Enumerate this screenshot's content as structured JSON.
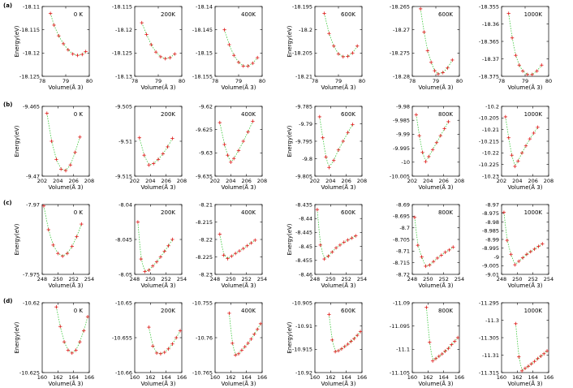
{
  "chart_data": {
    "type": "scatter",
    "layout": "4x6 grid",
    "ylabel": "Energy(eV)",
    "xlabel": "Volume(Å 3)",
    "colors": {
      "points": "#e01b1b",
      "fit": "#3cc83c",
      "frame": "#000000"
    },
    "rows": [
      {
        "label": "(a)",
        "xlim": [
          78,
          80
        ],
        "xticks": [
          78,
          79,
          80
        ],
        "panels": [
          {
            "temp": "0 K",
            "ylim": [
              -18.125,
              -18.11
            ],
            "yticks": [
              -18.11,
              -18.115,
              -18.12,
              -18.125
            ],
            "x": [
              78.35,
              78.5,
              78.7,
              78.9,
              79.1,
              79.3,
              79.5,
              79.7,
              79.85
            ],
            "y": [
              -18.1115,
              -18.114,
              -18.1163,
              -18.118,
              -18.1193,
              -18.1202,
              -18.1205,
              -18.1203,
              -18.1197
            ]
          },
          {
            "temp": "200K",
            "ylim": [
              -18.13,
              -18.115
            ],
            "yticks": [
              -18.115,
              -18.12,
              -18.125,
              -18.13
            ],
            "x": [
              78.3,
              78.5,
              78.7,
              78.9,
              79.1,
              79.3,
              79.5,
              79.7
            ],
            "y": [
              -18.1185,
              -18.121,
              -18.1232,
              -18.1248,
              -18.1258,
              -18.1262,
              -18.126,
              -18.1252
            ]
          },
          {
            "temp": "400K",
            "ylim": [
              -18.155,
              -18.14
            ],
            "yticks": [
              -18.14,
              -18.145,
              -18.15,
              -18.155
            ],
            "x": [
              78.4,
              78.6,
              78.8,
              79.0,
              79.2,
              79.4,
              79.6,
              79.8
            ],
            "y": [
              -18.145,
              -18.1482,
              -18.1505,
              -18.152,
              -18.1528,
              -18.1528,
              -18.1522,
              -18.151
            ]
          },
          {
            "temp": "600K",
            "ylim": [
              -18.21,
              -18.195
            ],
            "yticks": [
              -18.195,
              -18.2,
              -18.205,
              -18.21
            ],
            "x": [
              78.4,
              78.6,
              78.8,
              79.0,
              79.2,
              79.4,
              79.6,
              79.8
            ],
            "y": [
              -18.1965,
              -18.2008,
              -18.2035,
              -18.2052,
              -18.2058,
              -18.2057,
              -18.205,
              -18.2035
            ]
          },
          {
            "temp": "600K",
            "ylim": [
              -18.28,
              -18.265
            ],
            "yticks": [
              -18.265,
              -18.27,
              -18.275,
              -18.28
            ],
            "x": [
              78.35,
              78.5,
              78.65,
              78.8,
              78.95,
              79.1,
              79.3,
              79.5,
              79.7
            ],
            "y": [
              -18.2655,
              -18.2705,
              -18.2745,
              -18.277,
              -18.2788,
              -18.2795,
              -18.2792,
              -18.2782,
              -18.2765
            ]
          },
          {
            "temp": "1000K",
            "ylim": [
              -18.375,
              -18.355
            ],
            "yticks": [
              -18.355,
              -18.36,
              -18.365,
              -18.37,
              -18.375
            ],
            "x": [
              78.3,
              78.45,
              78.6,
              78.75,
              78.9,
              79.1,
              79.3,
              79.5,
              79.7
            ],
            "y": [
              -18.357,
              -18.364,
              -18.369,
              -18.3718,
              -18.3735,
              -18.3745,
              -18.3745,
              -18.3735,
              -18.3718
            ]
          }
        ]
      },
      {
        "label": "(b)",
        "xlim": [
          202,
          208
        ],
        "xticks": [
          202,
          204,
          206,
          208
        ],
        "panels": [
          {
            "temp": "0 K",
            "ylim": [
              -9.47,
              -9.465
            ],
            "yticks": [
              -9.465,
              -9.47
            ],
            "x": [
              202.6,
              203.2,
              203.8,
              204.4,
              205.0,
              205.6,
              206.2,
              206.8
            ],
            "y": [
              -9.4655,
              -9.4675,
              -9.4688,
              -9.4695,
              -9.4696,
              -9.4692,
              -9.4683,
              -9.4672
            ]
          },
          {
            "temp": "200K",
            "ylim": [
              -9.515,
              -9.505
            ],
            "yticks": [
              -9.505,
              -9.51,
              -9.515
            ],
            "x": [
              202.6,
              203.2,
              203.8,
              204.4,
              205.0,
              205.6,
              206.2,
              206.8
            ],
            "y": [
              -9.5095,
              -9.512,
              -9.5134,
              -9.5132,
              -9.5126,
              -9.5118,
              -9.5108,
              -9.5096
            ]
          },
          {
            "temp": "400K",
            "ylim": [
              -9.635,
              -9.62
            ],
            "yticks": [
              -9.62,
              -9.625,
              -9.63,
              -9.635
            ],
            "x": [
              202.6,
              203.2,
              203.6,
              204.0,
              204.4,
              205.0,
              205.6,
              206.2,
              206.8
            ],
            "y": [
              -9.6235,
              -9.6282,
              -9.6305,
              -9.632,
              -9.6312,
              -9.6295,
              -9.6275,
              -9.6255,
              -9.6232
            ]
          },
          {
            "temp": "600K",
            "ylim": [
              -9.805,
              -9.785
            ],
            "yticks": [
              -9.785,
              -9.79,
              -9.795,
              -9.8,
              -9.805
            ],
            "x": [
              202.6,
              203.0,
              203.4,
              203.8,
              204.4,
              205.0,
              205.6,
              206.2,
              206.8
            ],
            "y": [
              -9.788,
              -9.794,
              -9.7995,
              -9.8025,
              -9.8005,
              -9.7975,
              -9.795,
              -9.7925,
              -9.7902
            ]
          },
          {
            "temp": "800K",
            "ylim": [
              -10.005,
              -9.98
            ],
            "yticks": [
              -9.98,
              -9.985,
              -9.99,
              -9.995,
              -10,
              -10.005
            ],
            "x": [
              202.5,
              202.9,
              203.3,
              203.7,
              204.1,
              204.6,
              205.1,
              205.6,
              206.1,
              206.6
            ],
            "y": [
              -9.983,
              -9.9905,
              -9.9965,
              -9.9998,
              -9.998,
              -9.9955,
              -9.993,
              -9.9905,
              -9.988,
              -9.9855
            ]
          },
          {
            "temp": "1000K",
            "ylim": [
              -10.23,
              -10.2
            ],
            "yticks": [
              -10.2,
              -10.205,
              -10.21,
              -10.215,
              -10.22,
              -10.225,
              -10.23
            ],
            "x": [
              202.5,
              202.9,
              203.3,
              203.7,
              204.1,
              204.6,
              205.1,
              205.6,
              206.1,
              206.6
            ],
            "y": [
              -10.2045,
              -10.2135,
              -10.221,
              -10.2258,
              -10.2235,
              -10.22,
              -10.217,
              -10.214,
              -10.2115,
              -10.209
            ]
          }
        ]
      },
      {
        "label": "(c)",
        "xlim": [
          248,
          254
        ],
        "xticks": [
          248,
          250,
          252,
          254
        ],
        "panels": [
          {
            "temp": "0 K",
            "ylim": [
              -7.975,
              -7.97
            ],
            "yticks": [
              -7.97,
              -7.975
            ],
            "x": [
              248.2,
              248.8,
              249.4,
              250.0,
              250.6,
              251.2,
              251.8,
              252.4,
              253.0
            ],
            "y": [
              -7.9701,
              -7.9718,
              -7.9729,
              -7.9735,
              -7.9737,
              -7.9735,
              -7.973,
              -7.9723,
              -7.9714
            ]
          },
          {
            "temp": "200K",
            "ylim": [
              -8.05,
              -8.04
            ],
            "yticks": [
              -8.04,
              -8.045,
              -8.05
            ],
            "x": [
              248.4,
              248.8,
              249.3,
              249.8,
              250.3,
              250.8,
              251.3,
              251.8,
              252.3,
              252.8
            ],
            "y": [
              -8.0425,
              -8.0478,
              -8.0496,
              -8.0494,
              -8.0488,
              -8.0482,
              -8.0475,
              -8.0467,
              -8.0459,
              -8.045
            ]
          },
          {
            "temp": "400K",
            "ylim": [
              -8.23,
              -8.21
            ],
            "yticks": [
              -8.21,
              -8.215,
              -8.22,
              -8.225,
              -8.23
            ],
            "x": [
              248.6,
              249.1,
              249.6,
              250.1,
              250.6,
              251.1,
              251.6,
              252.1,
              252.6,
              253.1
            ],
            "y": [
              -8.2185,
              -8.2245,
              -8.2255,
              -8.2248,
              -8.224,
              -8.2233,
              -8.2226,
              -8.2218,
              -8.221,
              -8.2202
            ]
          },
          {
            "temp": "600K",
            "ylim": [
              -8.46,
              -8.435
            ],
            "yticks": [
              -8.435,
              -8.44,
              -8.445,
              -8.45,
              -8.455,
              -8.46
            ],
            "x": [
              248.3,
              248.7,
              249.2,
              249.7,
              250.2,
              250.7,
              251.2,
              251.7,
              252.2,
              252.7,
              253.2
            ],
            "y": [
              -8.4368,
              -8.4495,
              -8.4545,
              -8.4535,
              -8.452,
              -8.4505,
              -8.4495,
              -8.4485,
              -8.4477,
              -8.447,
              -8.4462
            ]
          },
          {
            "temp": "800K",
            "ylim": [
              -8.72,
              -8.69
            ],
            "yticks": [
              -8.69,
              -8.695,
              -8.7,
              -8.705,
              -8.71,
              -8.715,
              -8.72
            ],
            "x": [
              248.3,
              248.7,
              249.2,
              249.7,
              250.2,
              250.7,
              251.2,
              251.7,
              252.2,
              252.7,
              253.2
            ],
            "y": [
              -8.6955,
              -8.7075,
              -8.7125,
              -8.7165,
              -8.716,
              -8.7145,
              -8.713,
              -8.7118,
              -8.7105,
              -8.7095,
              -8.7083
            ]
          },
          {
            "temp": "1000K",
            "ylim": [
              -9.01,
              -8.97
            ],
            "yticks": [
              -8.97,
              -8.975,
              -8.98,
              -8.985,
              -8.99,
              -8.995,
              -9,
              -9.005,
              -9.01
            ],
            "x": [
              248.3,
              248.7,
              249.2,
              249.7,
              250.2,
              250.7,
              251.2,
              251.7,
              252.2,
              252.7,
              253.2
            ],
            "y": [
              -8.9745,
              -8.9905,
              -8.9985,
              -9.0045,
              -9.0025,
              -9.0005,
              -8.9985,
              -8.997,
              -8.9955,
              -8.994,
              -8.9925
            ]
          }
        ]
      },
      {
        "label": "(d)",
        "xlim": [
          160,
          166
        ],
        "xticks": [
          160,
          162,
          164,
          166
        ],
        "panels": [
          {
            "temp": "0 K",
            "ylim": [
              -10.625,
              -10.62
            ],
            "yticks": [
              -10.62,
              -10.625
            ],
            "x": [
              161.8,
              162.3,
              162.8,
              163.3,
              163.8,
              164.3,
              164.8,
              165.3,
              165.8
            ],
            "y": [
              -10.6203,
              -10.6217,
              -10.6228,
              -10.6234,
              -10.6236,
              -10.6234,
              -10.6228,
              -10.622,
              -10.621
            ]
          },
          {
            "temp": "200K",
            "ylim": [
              -10.66,
              -10.65
            ],
            "yticks": [
              -10.65,
              -10.655,
              -10.66
            ],
            "x": [
              161.8,
              162.3,
              162.8,
              163.3,
              163.8,
              164.3,
              164.8,
              165.3,
              165.8
            ],
            "y": [
              -10.6535,
              -10.6562,
              -10.6572,
              -10.6573,
              -10.6571,
              -10.6566,
              -10.6559,
              -10.655,
              -10.654
            ]
          },
          {
            "temp": "400K",
            "ylim": [
              -10.765,
              -10.755
            ],
            "yticks": [
              -10.755,
              -10.76,
              -10.765
            ],
            "x": [
              161.8,
              162.2,
              162.6,
              163.0,
              163.4,
              163.8,
              164.2,
              164.6,
              165.0,
              165.4,
              165.8
            ],
            "y": [
              -10.7565,
              -10.7608,
              -10.7625,
              -10.7623,
              -10.7618,
              -10.7613,
              -10.7608,
              -10.7602,
              -10.7595,
              -10.7588,
              -10.758
            ]
          },
          {
            "temp": "600K",
            "ylim": [
              -10.92,
              -10.905
            ],
            "yticks": [
              -10.905,
              -10.91,
              -10.915,
              -10.92
            ],
            "x": [
              161.8,
              162.2,
              162.6,
              163.0,
              163.4,
              163.8,
              164.2,
              164.6,
              165.0,
              165.4,
              165.8
            ],
            "y": [
              -10.9075,
              -10.913,
              -10.9155,
              -10.9153,
              -10.9149,
              -10.9144,
              -10.9139,
              -10.9133,
              -10.9127,
              -10.912,
              -10.9112
            ]
          },
          {
            "temp": "800K",
            "ylim": [
              -11.105,
              -11.09
            ],
            "yticks": [
              -11.09,
              -11.095,
              -11.1,
              -11.105
            ],
            "x": [
              161.8,
              162.2,
              162.6,
              163.0,
              163.4,
              163.8,
              164.2,
              164.6,
              165.0,
              165.4,
              165.8
            ],
            "y": [
              -11.091,
              -11.0985,
              -11.1025,
              -11.102,
              -11.1015,
              -11.101,
              -11.1004,
              -11.0998,
              -11.099,
              -11.0983,
              -11.0975
            ]
          },
          {
            "temp": "1000K",
            "ylim": [
              -11.315,
              -11.295
            ],
            "yticks": [
              -11.295,
              -11.3,
              -11.305,
              -11.31,
              -11.315
            ],
            "x": [
              161.8,
              162.2,
              162.6,
              163.0,
              163.4,
              163.8,
              164.2,
              164.6,
              165.0,
              165.4,
              165.8
            ],
            "y": [
              -11.301,
              -11.3105,
              -11.3145,
              -11.3138,
              -11.3132,
              -11.3125,
              -11.3118,
              -11.311,
              -11.3103,
              -11.3096,
              -11.3088
            ]
          }
        ]
      }
    ]
  }
}
